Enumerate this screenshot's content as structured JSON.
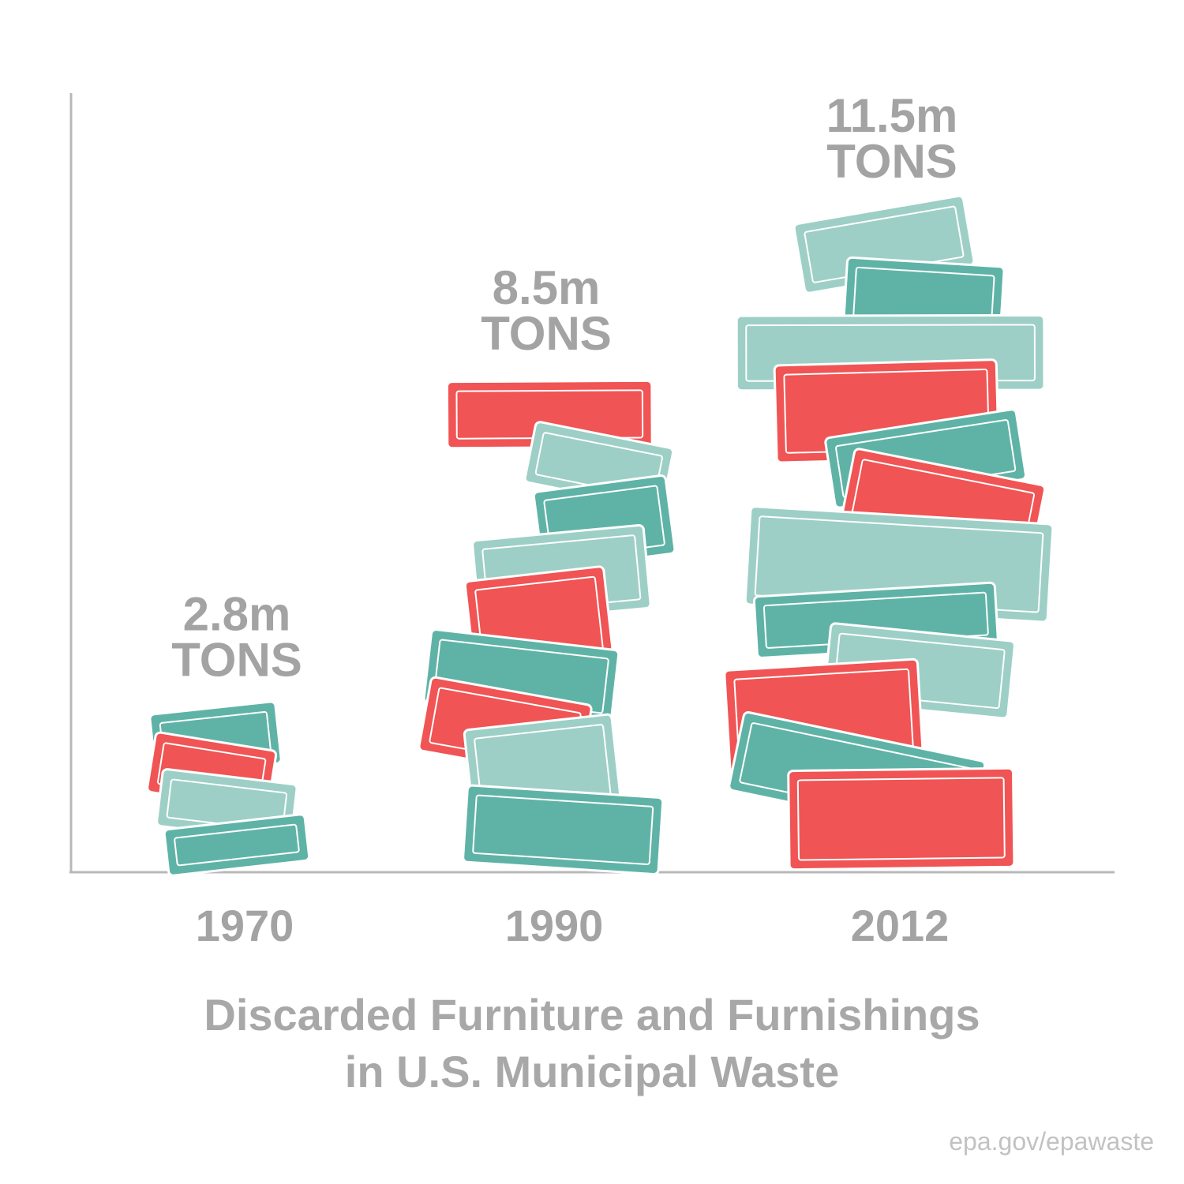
{
  "chart_data": {
    "type": "bar",
    "categories": [
      "1970",
      "1990",
      "2012"
    ],
    "values": [
      2.8,
      8.5,
      11.5
    ],
    "value_labels": [
      [
        "2.8m",
        "TONS"
      ],
      [
        "8.5m",
        "TONS"
      ],
      [
        "11.5m",
        "TONS"
      ]
    ],
    "title_lines": [
      "Discarded Furniture and Furnishings",
      "in U.S. Municipal Waste"
    ],
    "xlabel": "",
    "ylabel": "",
    "ylim": [
      0,
      13.5
    ],
    "grid": false,
    "legend": "none",
    "colors": {
      "red": "#f05454",
      "teal": "#5fb3a6",
      "light_teal": "#9dcfc6",
      "axis": "#b8b8b8",
      "text": "#a3a3a3"
    }
  },
  "source": "epa.gov/epawaste"
}
